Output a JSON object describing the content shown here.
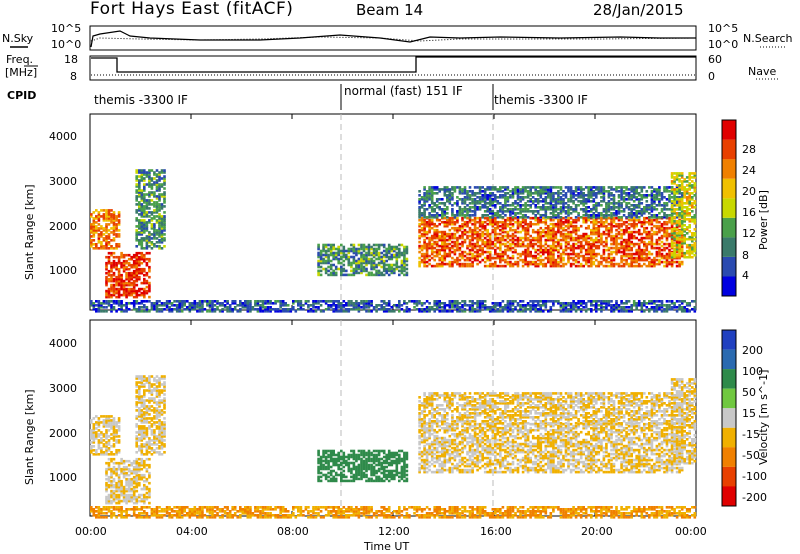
{
  "header": {
    "station": "Fort Hays East (fitACF)",
    "beam": "Beam 14",
    "date": "28/Jan/2015"
  },
  "noise_panel": {
    "left_label": "N.Sky",
    "right_label": "N.Search",
    "left_ticks": [
      "10^5",
      "10^0"
    ],
    "right_ticks": [
      "10^5",
      "10^0"
    ]
  },
  "freq_panel": {
    "left_label_1": "Freq.",
    "left_label_2": "[MHz]",
    "right_label": "Nave",
    "left_ticks": [
      "18",
      "8"
    ],
    "right_ticks": [
      "60",
      "0"
    ]
  },
  "cpid": {
    "label": "CPID",
    "segments": [
      "themis -3300 IF",
      "normal (fast) 151 IF",
      "themis -3300 IF"
    ]
  },
  "power_panel": {
    "ylabel": "Slant Range [km]",
    "yticks": [
      "1000",
      "2000",
      "3000",
      "4000"
    ],
    "cb_title": "Power [dB]",
    "cb_ticks": [
      "4",
      "8",
      "12",
      "16",
      "20",
      "24",
      "28"
    ],
    "cb_colors": [
      "#0000e0",
      "#2a4ab0",
      "#3a7a6a",
      "#4aa04a",
      "#c8d800",
      "#f0c000",
      "#f08000",
      "#e84000",
      "#e00000"
    ]
  },
  "velocity_panel": {
    "ylabel": "Slant Range [km]",
    "yticks": [
      "1000",
      "2000",
      "3000",
      "4000"
    ],
    "cb_title": "Velocity [m s^-1]",
    "cb_ticks": [
      "200",
      "100",
      "50",
      "15",
      "-15",
      "-50",
      "-100",
      "-200"
    ],
    "cb_colors": [
      "#2040c0",
      "#2a6ab0",
      "#2e8a4a",
      "#70c840",
      "#c8c8c8",
      "#f0b000",
      "#f08000",
      "#e84000",
      "#e00000"
    ]
  },
  "xaxis": {
    "label": "Time UT",
    "ticks": [
      "00:00",
      "04:00",
      "08:00",
      "12:00",
      "16:00",
      "20:00",
      "00:00"
    ]
  },
  "chart_data": {
    "type": "heatmap",
    "title": "Fort Hays East (fitACF)",
    "xlabel": "Time UT",
    "ylabel": "Slant Range [km]",
    "xlim": [
      "00:00",
      "24:00"
    ],
    "ylim": [
      180,
      4600
    ],
    "cpid_boundaries_ut": [
      10,
      16
    ],
    "cpid_segments": [
      {
        "start": "00:00",
        "end": "10:00",
        "name": "themis -3300 IF"
      },
      {
        "start": "10:00",
        "end": "16:00",
        "name": "normal (fast) 151 IF"
      },
      {
        "start": "16:00",
        "end": "24:00",
        "name": "themis -3300 IF"
      }
    ],
    "frequency_mhz": {
      "t": [
        0.0,
        1.0,
        1.0,
        13.0,
        13.0,
        24.0
      ],
      "v": [
        17.5,
        17.5,
        11.0,
        11.0,
        17.5,
        17.5
      ]
    },
    "scatter_regions": [
      {
        "t_start": 0.0,
        "t_end": 1.2,
        "r_start": 1600,
        "r_end": 2500,
        "power_db": 22,
        "velocity": -15
      },
      {
        "t_start": 0.6,
        "t_end": 2.4,
        "r_start": 500,
        "r_end": 1500,
        "power_db": 26,
        "velocity": -15
      },
      {
        "t_start": 1.8,
        "t_end": 3.0,
        "r_start": 1600,
        "r_end": 3400,
        "power_db": 10,
        "velocity": -15
      },
      {
        "t_start": 9.0,
        "t_end": 12.5,
        "r_start": 1000,
        "r_end": 1700,
        "power_db": 10,
        "velocity": 50
      },
      {
        "t_start": 13.0,
        "t_end": 23.5,
        "r_start": 1200,
        "r_end": 2300,
        "power_db": 24,
        "velocity": -15
      },
      {
        "t_start": 13.0,
        "t_end": 23.5,
        "r_start": 2300,
        "r_end": 3000,
        "power_db": 8,
        "velocity": -15
      },
      {
        "t_start": 23.0,
        "t_end": 24.0,
        "r_start": 1400,
        "r_end": 3300,
        "power_db": 16,
        "velocity": -15
      },
      {
        "t_start": 0.0,
        "t_end": 24.0,
        "r_start": 180,
        "r_end": 450,
        "power_db": 6,
        "velocity": -50
      }
    ],
    "power_colorbar_db": [
      4,
      8,
      12,
      16,
      20,
      24,
      28
    ],
    "velocity_colorbar_ms": [
      200,
      100,
      50,
      15,
      -15,
      -50,
      -100,
      -200
    ]
  }
}
